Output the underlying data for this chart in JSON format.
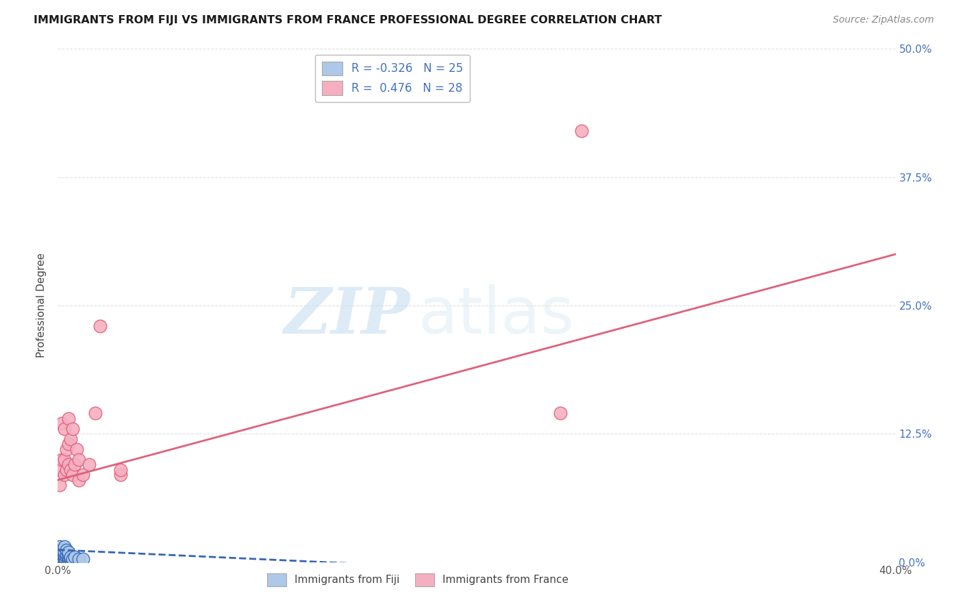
{
  "title": "IMMIGRANTS FROM FIJI VS IMMIGRANTS FROM FRANCE PROFESSIONAL DEGREE CORRELATION CHART",
  "source": "Source: ZipAtlas.com",
  "ylabel": "Professional Degree",
  "fiji_R": -0.326,
  "fiji_N": 25,
  "france_R": 0.476,
  "france_N": 28,
  "fiji_color": "#adc8e8",
  "france_color": "#f5afc0",
  "fiji_line_color": "#3565b8",
  "france_line_color": "#e0607a",
  "xlim": [
    0.0,
    0.4
  ],
  "ylim": [
    0.0,
    0.5
  ],
  "fiji_scatter_x": [
    0.001,
    0.001,
    0.001,
    0.002,
    0.002,
    0.002,
    0.002,
    0.003,
    0.003,
    0.003,
    0.003,
    0.003,
    0.004,
    0.004,
    0.004,
    0.005,
    0.005,
    0.005,
    0.005,
    0.006,
    0.006,
    0.007,
    0.008,
    0.01,
    0.012
  ],
  "fiji_scatter_y": [
    0.005,
    0.01,
    0.015,
    0.003,
    0.005,
    0.008,
    0.012,
    0.003,
    0.005,
    0.007,
    0.01,
    0.015,
    0.005,
    0.008,
    0.012,
    0.003,
    0.005,
    0.008,
    0.01,
    0.003,
    0.005,
    0.003,
    0.005,
    0.003,
    0.003
  ],
  "france_scatter_x": [
    0.001,
    0.001,
    0.002,
    0.002,
    0.003,
    0.003,
    0.003,
    0.004,
    0.004,
    0.005,
    0.005,
    0.005,
    0.006,
    0.006,
    0.007,
    0.007,
    0.008,
    0.009,
    0.01,
    0.01,
    0.012,
    0.015,
    0.018,
    0.02,
    0.03,
    0.03,
    0.24,
    0.25
  ],
  "france_scatter_y": [
    0.075,
    0.09,
    0.1,
    0.135,
    0.085,
    0.1,
    0.13,
    0.09,
    0.11,
    0.095,
    0.115,
    0.14,
    0.09,
    0.12,
    0.085,
    0.13,
    0.095,
    0.11,
    0.08,
    0.1,
    0.085,
    0.095,
    0.145,
    0.23,
    0.085,
    0.09,
    0.145,
    0.42
  ],
  "france_line_x0": 0.0,
  "france_line_y0": 0.08,
  "france_line_x1": 0.4,
  "france_line_y1": 0.3,
  "fiji_line_x0": 0.0,
  "fiji_line_y0": 0.012,
  "fiji_line_x1": 0.18,
  "fiji_line_y1": -0.005,
  "watermark_zip": "ZIP",
  "watermark_atlas": "atlas",
  "background_color": "#ffffff",
  "grid_color": "#e0e0e0",
  "ytick_right_labels": [
    "0.0%",
    "12.5%",
    "25.0%",
    "37.5%",
    "50.0%"
  ],
  "ytick_values": [
    0.0,
    0.125,
    0.25,
    0.375,
    0.5
  ]
}
